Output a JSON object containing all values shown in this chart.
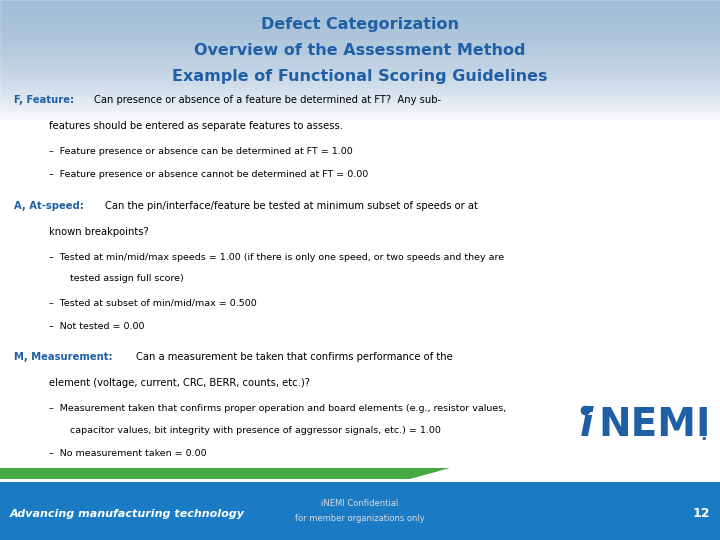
{
  "title_line1": "Defect Categorization",
  "title_line2": "Overview of the Assessment Method",
  "title_line3": "Example of Functional Scoring Guidelines",
  "title_color": "#1F5FA6",
  "bg_color": "#FFFFFF",
  "body_text_color": "#000000",
  "accent_color": "#1F5FA6",
  "footer_bg_color": "#1A7BC4",
  "footer_green_color": "#44AA44",
  "footer_text_line1": "iNEMI Confidential",
  "footer_text_line2": "for member organizations only",
  "page_number": "12",
  "footer_left_text": "Advancing manufacturing technology",
  "header_grad_top": "#C5D8EC",
  "header_grad_bot": "#FFFFFF",
  "inemi_color": "#1F5FA6"
}
